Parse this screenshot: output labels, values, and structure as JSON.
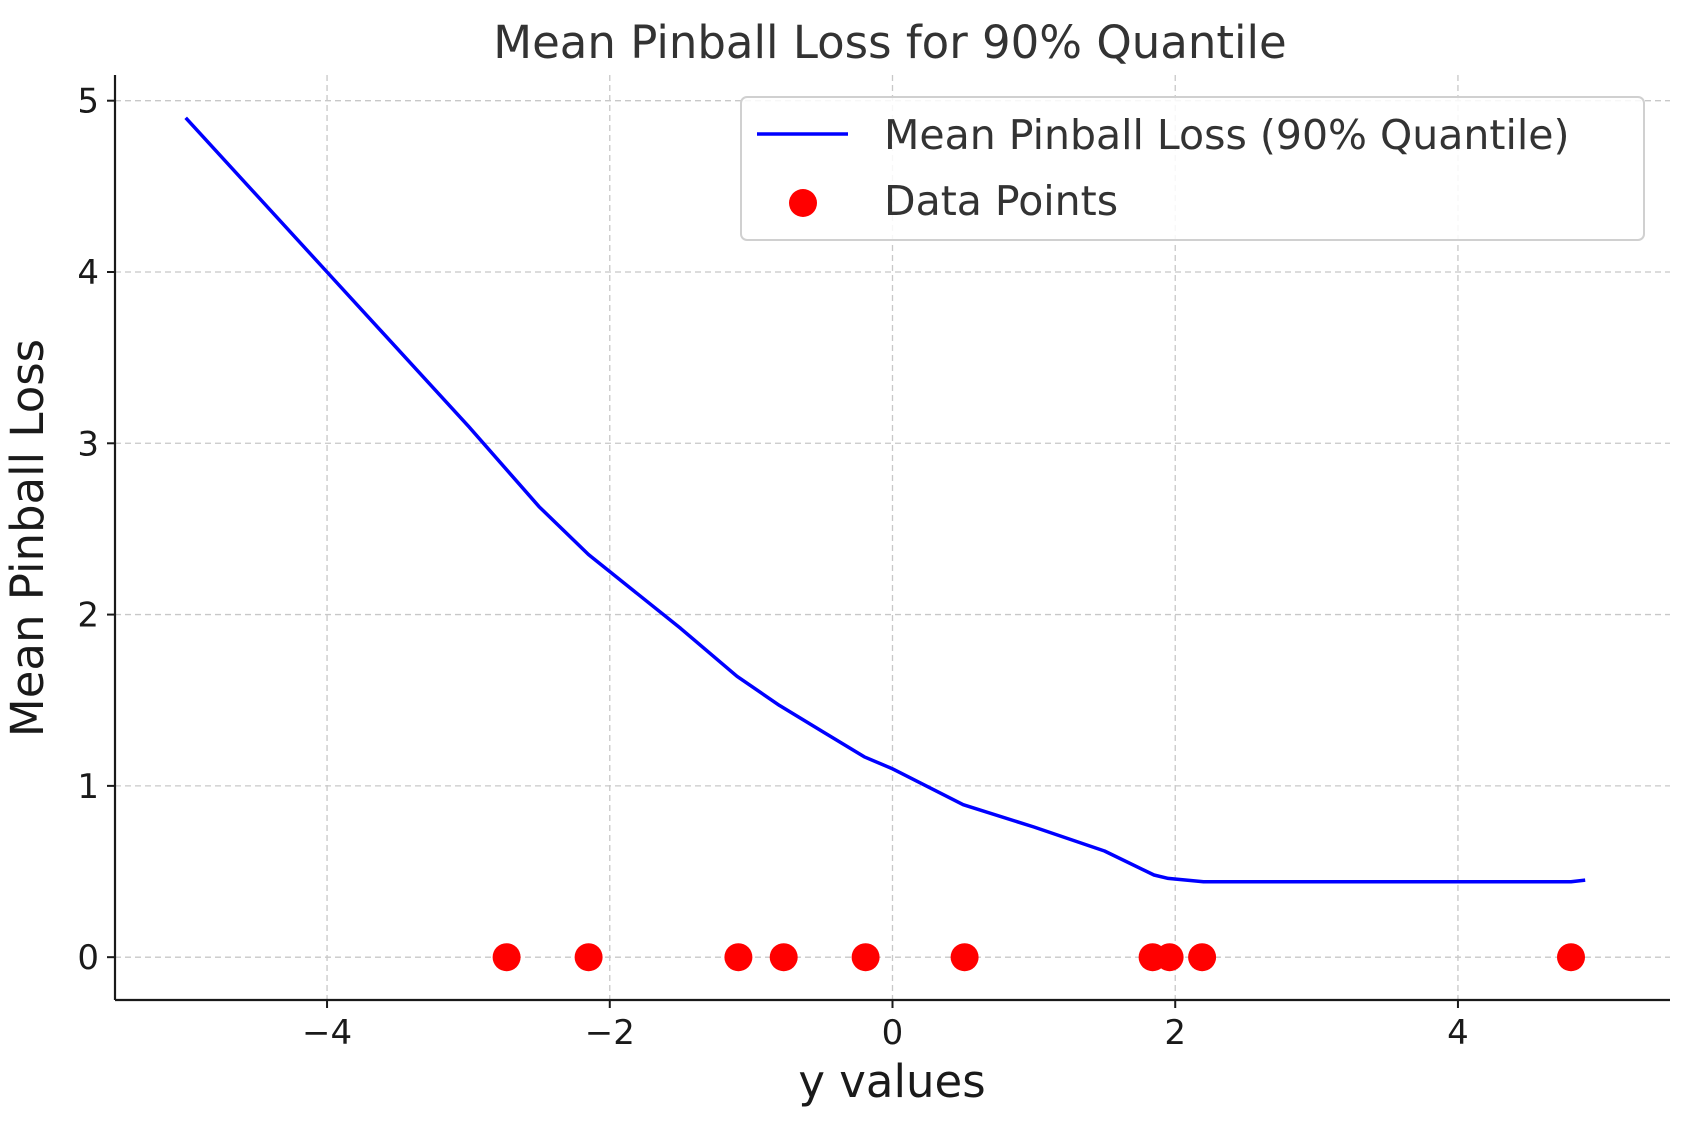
{
  "chart_data": {
    "type": "line",
    "title": "Mean Pinball Loss for 90% Quantile",
    "xlabel": "y values",
    "ylabel": "Mean Pinball Loss",
    "xlim": [
      -5.5,
      5.5
    ],
    "ylim": [
      -0.25,
      5.15
    ],
    "x_ticks": [
      -4,
      -2,
      0,
      2,
      4
    ],
    "x_tick_labels": [
      "−4",
      "−2",
      "0",
      "2",
      "4"
    ],
    "y_ticks": [
      0,
      1,
      2,
      3,
      4,
      5
    ],
    "y_tick_labels": [
      "0",
      "1",
      "2",
      "3",
      "4",
      "5"
    ],
    "grid": true,
    "legend_position": "top-right",
    "series": [
      {
        "name": "Mean Pinball Loss (90% Quantile)",
        "type": "line",
        "color": "#0000ff",
        "x": [
          -5.0,
          -4.0,
          -3.0,
          -2.5,
          -2.15,
          -1.5,
          -1.1,
          -0.8,
          -0.5,
          -0.2,
          0.0,
          0.5,
          1.0,
          1.5,
          1.85,
          1.95,
          2.2,
          3.0,
          4.0,
          4.8,
          4.9
        ],
        "y": [
          4.9,
          4.0,
          3.1,
          2.63,
          2.35,
          1.92,
          1.64,
          1.47,
          1.32,
          1.17,
          1.1,
          0.89,
          0.76,
          0.62,
          0.48,
          0.46,
          0.44,
          0.44,
          0.44,
          0.44,
          0.45
        ]
      },
      {
        "name": "Data Points",
        "type": "scatter",
        "color": "#ff0000",
        "x": [
          -2.73,
          -2.15,
          -1.09,
          -0.77,
          -0.19,
          0.51,
          1.84,
          1.96,
          2.19,
          4.8
        ],
        "y": [
          0,
          0,
          0,
          0,
          0,
          0,
          0,
          0,
          0,
          0
        ]
      }
    ]
  }
}
